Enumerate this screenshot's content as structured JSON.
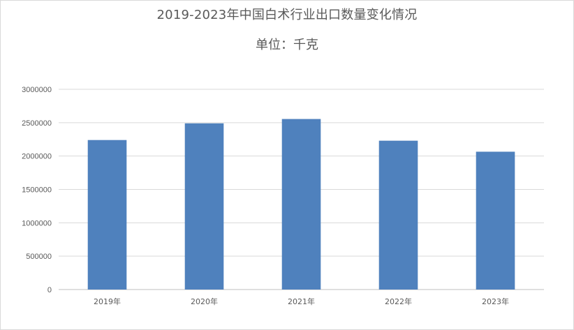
{
  "chart_data": {
    "type": "bar",
    "title": "2019-2023年中国白术行业出口数量变化情况",
    "subtitle": "单位：千克",
    "categories": [
      "2019年",
      "2020年",
      "2021年",
      "2022年",
      "2023年"
    ],
    "values": [
      2240000,
      2490000,
      2555000,
      2230000,
      2065000
    ],
    "ylim": [
      0,
      3000000
    ],
    "yticks": [
      "0",
      "500000",
      "1000000",
      "1500000",
      "2000000",
      "2500000",
      "3000000"
    ],
    "grid": true,
    "legend": "none",
    "bar_color": "#4f81bd",
    "grid_color": "#d9d9d9",
    "axis_color": "#bfbfbf",
    "text_color": "#595959"
  }
}
